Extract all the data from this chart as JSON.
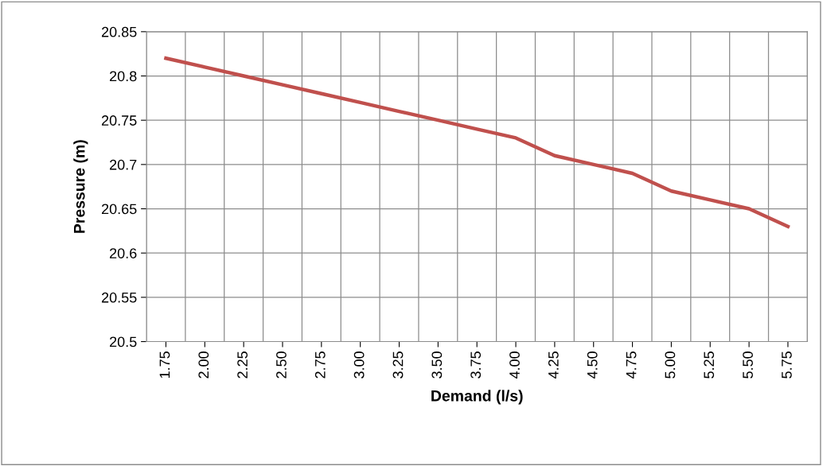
{
  "chart_data": {
    "type": "line",
    "xlabel": "Demand (l/s)",
    "ylabel": "Pressure (m)",
    "categories": [
      "1.75",
      "2.00",
      "2.25",
      "2.50",
      "2.75",
      "3.00",
      "3.25",
      "3.50",
      "3.75",
      "4.00",
      "4.25",
      "4.50",
      "4.75",
      "5.00",
      "5.25",
      "5.50",
      "5.75"
    ],
    "series": [
      {
        "color": "#c0504d",
        "values": [
          20.82,
          20.81,
          20.8,
          20.79,
          20.78,
          20.77,
          20.76,
          20.75,
          20.74,
          20.73,
          20.71,
          20.7,
          20.69,
          20.67,
          20.66,
          20.65,
          20.63
        ]
      }
    ],
    "ylim": [
      20.5,
      20.85
    ],
    "yticks": [
      {
        "value": 20.5,
        "label": "20.5"
      },
      20.55,
      {
        "value": 20.6,
        "label": "20.6"
      },
      20.65,
      {
        "value": 20.7,
        "label": "20.7"
      },
      20.75,
      {
        "value": 20.8,
        "label": "20.8"
      },
      20.85
    ],
    "grid": true,
    "legend": false,
    "marker": "none",
    "line_style": "solid"
  }
}
